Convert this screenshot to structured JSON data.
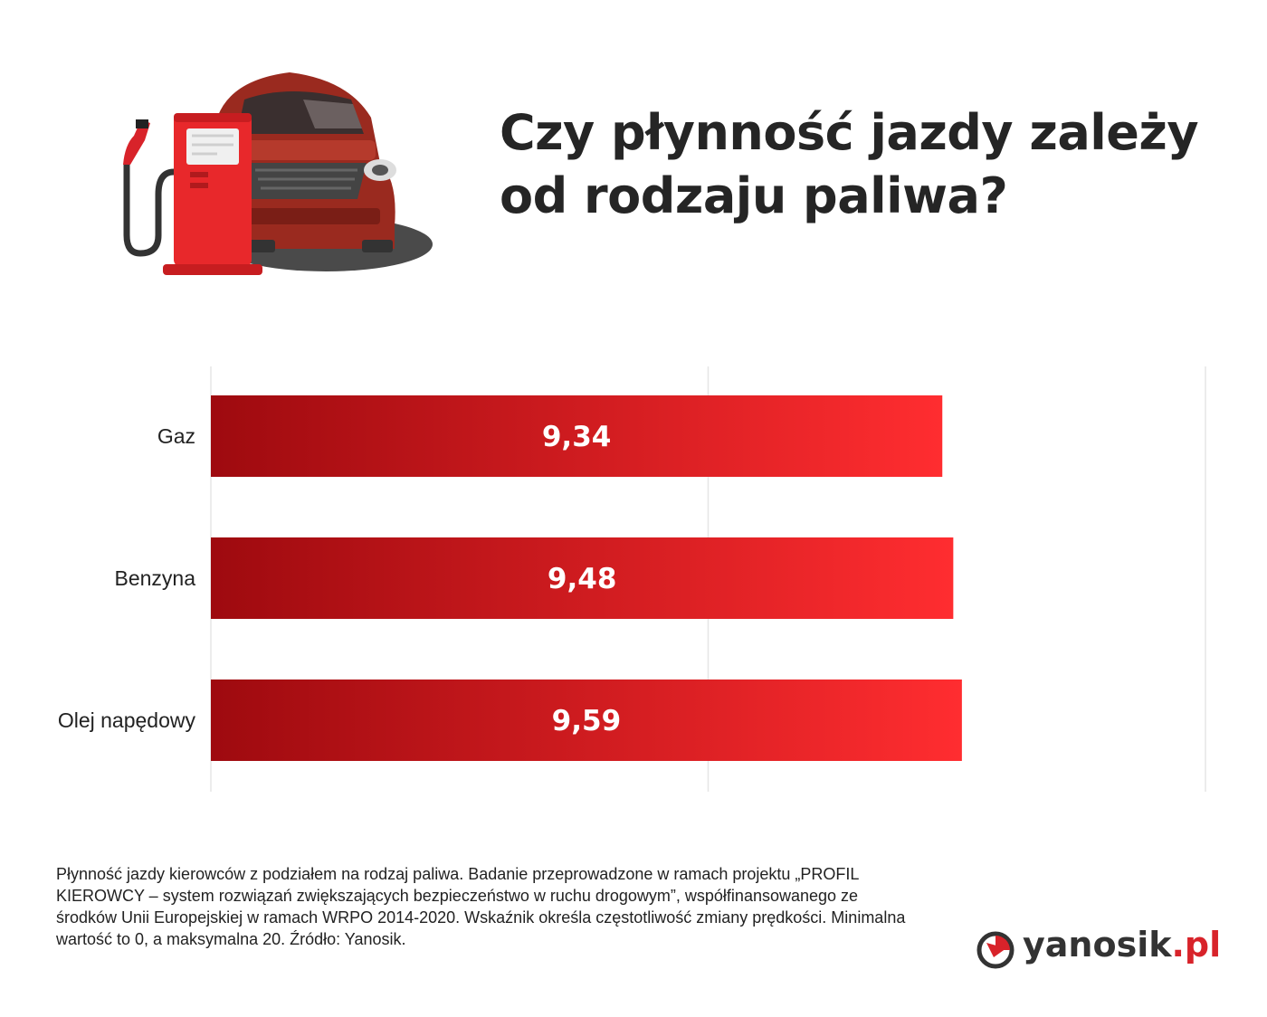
{
  "title": "Czy płynność jazdy zależy od rodzaju paliwa?",
  "chart_data": {
    "type": "bar",
    "orientation": "horizontal",
    "categories": [
      "Gaz",
      "Benzyna",
      "Olej napędowy"
    ],
    "values": [
      9.34,
      9.48,
      9.59
    ],
    "value_labels": [
      "9,34",
      "9,48",
      "9,59"
    ],
    "xlim": [
      0,
      12.7
    ],
    "grid": true,
    "legend": "none",
    "colors": {
      "bar_dark": "#9e0a0f",
      "bar_light": "#ff2d30",
      "bar_label": "#ffffff",
      "grid": "#e6e6e6"
    }
  },
  "footnote": "Płynność jazdy kierowców z podziałem na rodzaj paliwa. Badanie przeprowadzone w ramach projektu „PROFIL KIEROWCY – system rozwiązań zwiększających bezpieczeństwo w ruchu drogowym”, współfinansowanego ze środków Unii Europejskiej w ramach WRPO 2014-2020. Wskaźnik określa częstotliwość zmiany prędkości. Minimalna wartość to 0, a maksymalna 20. Źródło: Yanosik.",
  "logo": {
    "name": "yanosik",
    "suffix": ".pl",
    "icon": "yanosik-logo-icon"
  },
  "illustration": {
    "icons": [
      "car-icon",
      "fuel-pump-icon"
    ]
  }
}
